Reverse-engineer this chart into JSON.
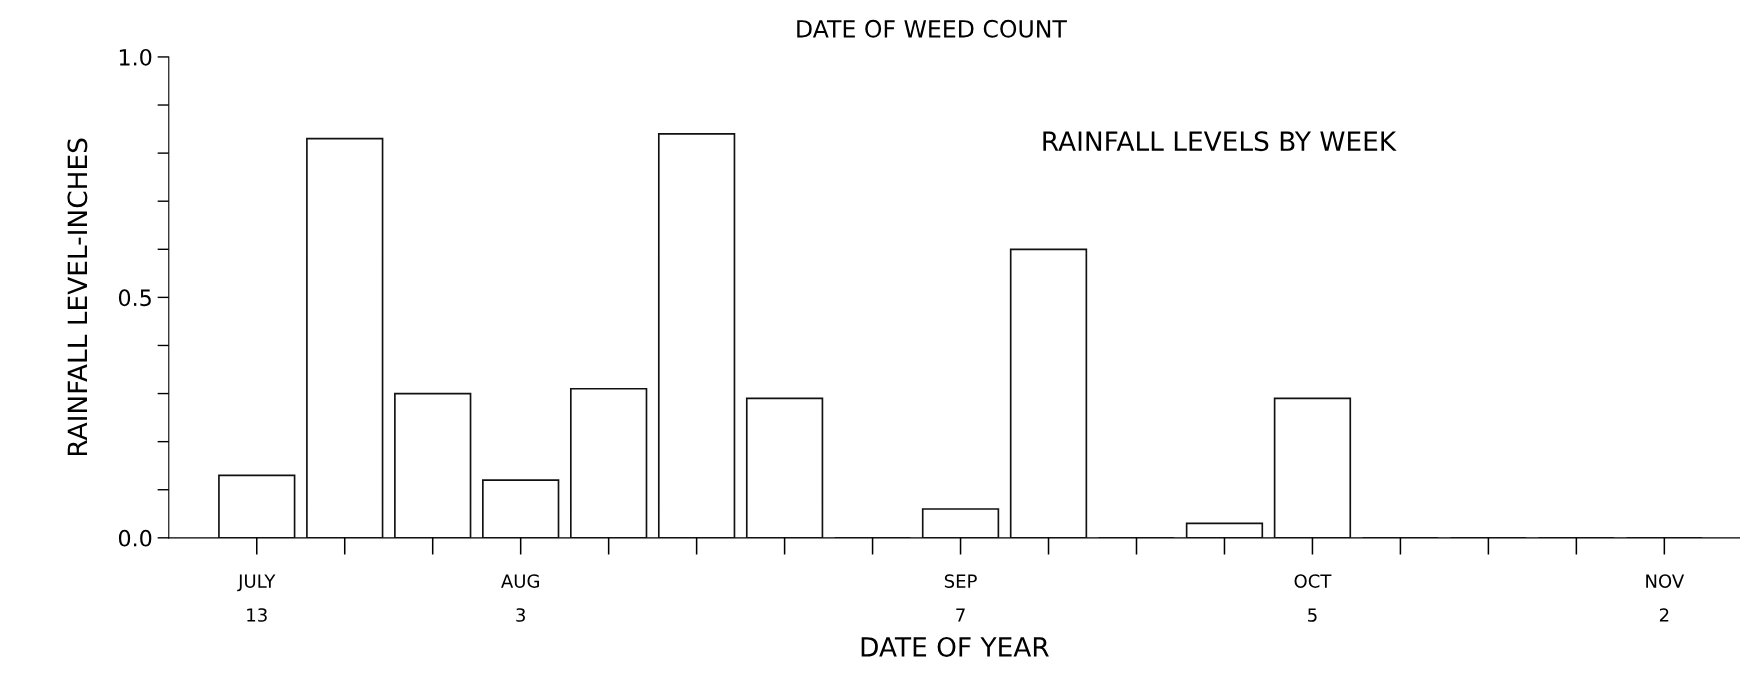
{
  "chart_data": {
    "type": "bar",
    "title": "DATE OF WEED COUNT",
    "xlabel": "DATE OF YEAR",
    "ylabel": "RAINFALL LEVEL-INCHES",
    "annotations": [
      "RAINFALL LEVELS BY WEEK"
    ],
    "categories": [
      "JULY\n13",
      null,
      null,
      "AUG\n3",
      null,
      null,
      null,
      null,
      "SEP\n7",
      null,
      null,
      null,
      "OCT\n5",
      null,
      null,
      null,
      "NOV\n2"
    ],
    "values": [
      0.13,
      0.83,
      0.3,
      0.12,
      0.31,
      0.84,
      0.29,
      0,
      0.06,
      0.6,
      0,
      0.03,
      0.29,
      0,
      0,
      0,
      0
    ],
    "color": "#111111",
    "ylim": [
      0,
      1
    ],
    "yticks": [
      {
        "value": 0,
        "label": "0.0"
      },
      {
        "value": 0.1,
        "label": null
      },
      {
        "value": 0.2,
        "label": null
      },
      {
        "value": 0.3,
        "label": null
      },
      {
        "value": 0.4,
        "label": null
      },
      {
        "value": 0.5,
        "label": "0.5"
      },
      {
        "value": 0.6,
        "label": null
      },
      {
        "value": 0.7,
        "label": null
      },
      {
        "value": 0.8,
        "label": null
      },
      {
        "value": 0.9,
        "label": null
      },
      {
        "value": 1,
        "label": "1.0"
      }
    ],
    "grid": false
  }
}
